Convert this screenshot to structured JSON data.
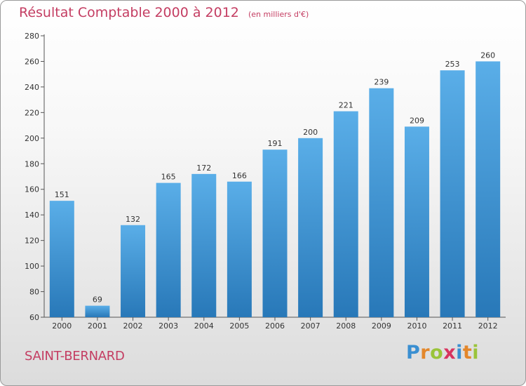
{
  "header": {
    "title": "Résultat Comptable 2000 à 2012",
    "subtitle": "(en milliers d'€)"
  },
  "footer": {
    "commune": "SAINT-BERNARD",
    "brand": [
      "P",
      "r",
      "o",
      "x",
      "i",
      "t",
      "i"
    ],
    "brand_colors": [
      "#3a8fd1",
      "#e3872b",
      "#9ac43a",
      "#d8345f",
      "#3a8fd1",
      "#e3872b",
      "#9ac43a"
    ]
  },
  "chart_data": {
    "type": "bar",
    "title": "Résultat Comptable 2000 à 2012",
    "subtitle": "(en milliers d'€)",
    "categories": [
      "2000",
      "2001",
      "2002",
      "2003",
      "2004",
      "2005",
      "2006",
      "2007",
      "2008",
      "2009",
      "2010",
      "2011",
      "2012"
    ],
    "values": [
      151,
      69,
      132,
      165,
      172,
      166,
      191,
      200,
      221,
      239,
      209,
      253,
      260
    ],
    "xlabel": "",
    "ylabel": "",
    "ylim": [
      60,
      280
    ],
    "yticks": [
      60,
      80,
      100,
      120,
      140,
      160,
      180,
      200,
      220,
      240,
      260,
      280
    ],
    "grid": false,
    "bar_color_top": "#5aaee8",
    "bar_color_bottom": "#2878b8",
    "data_labels": true
  }
}
